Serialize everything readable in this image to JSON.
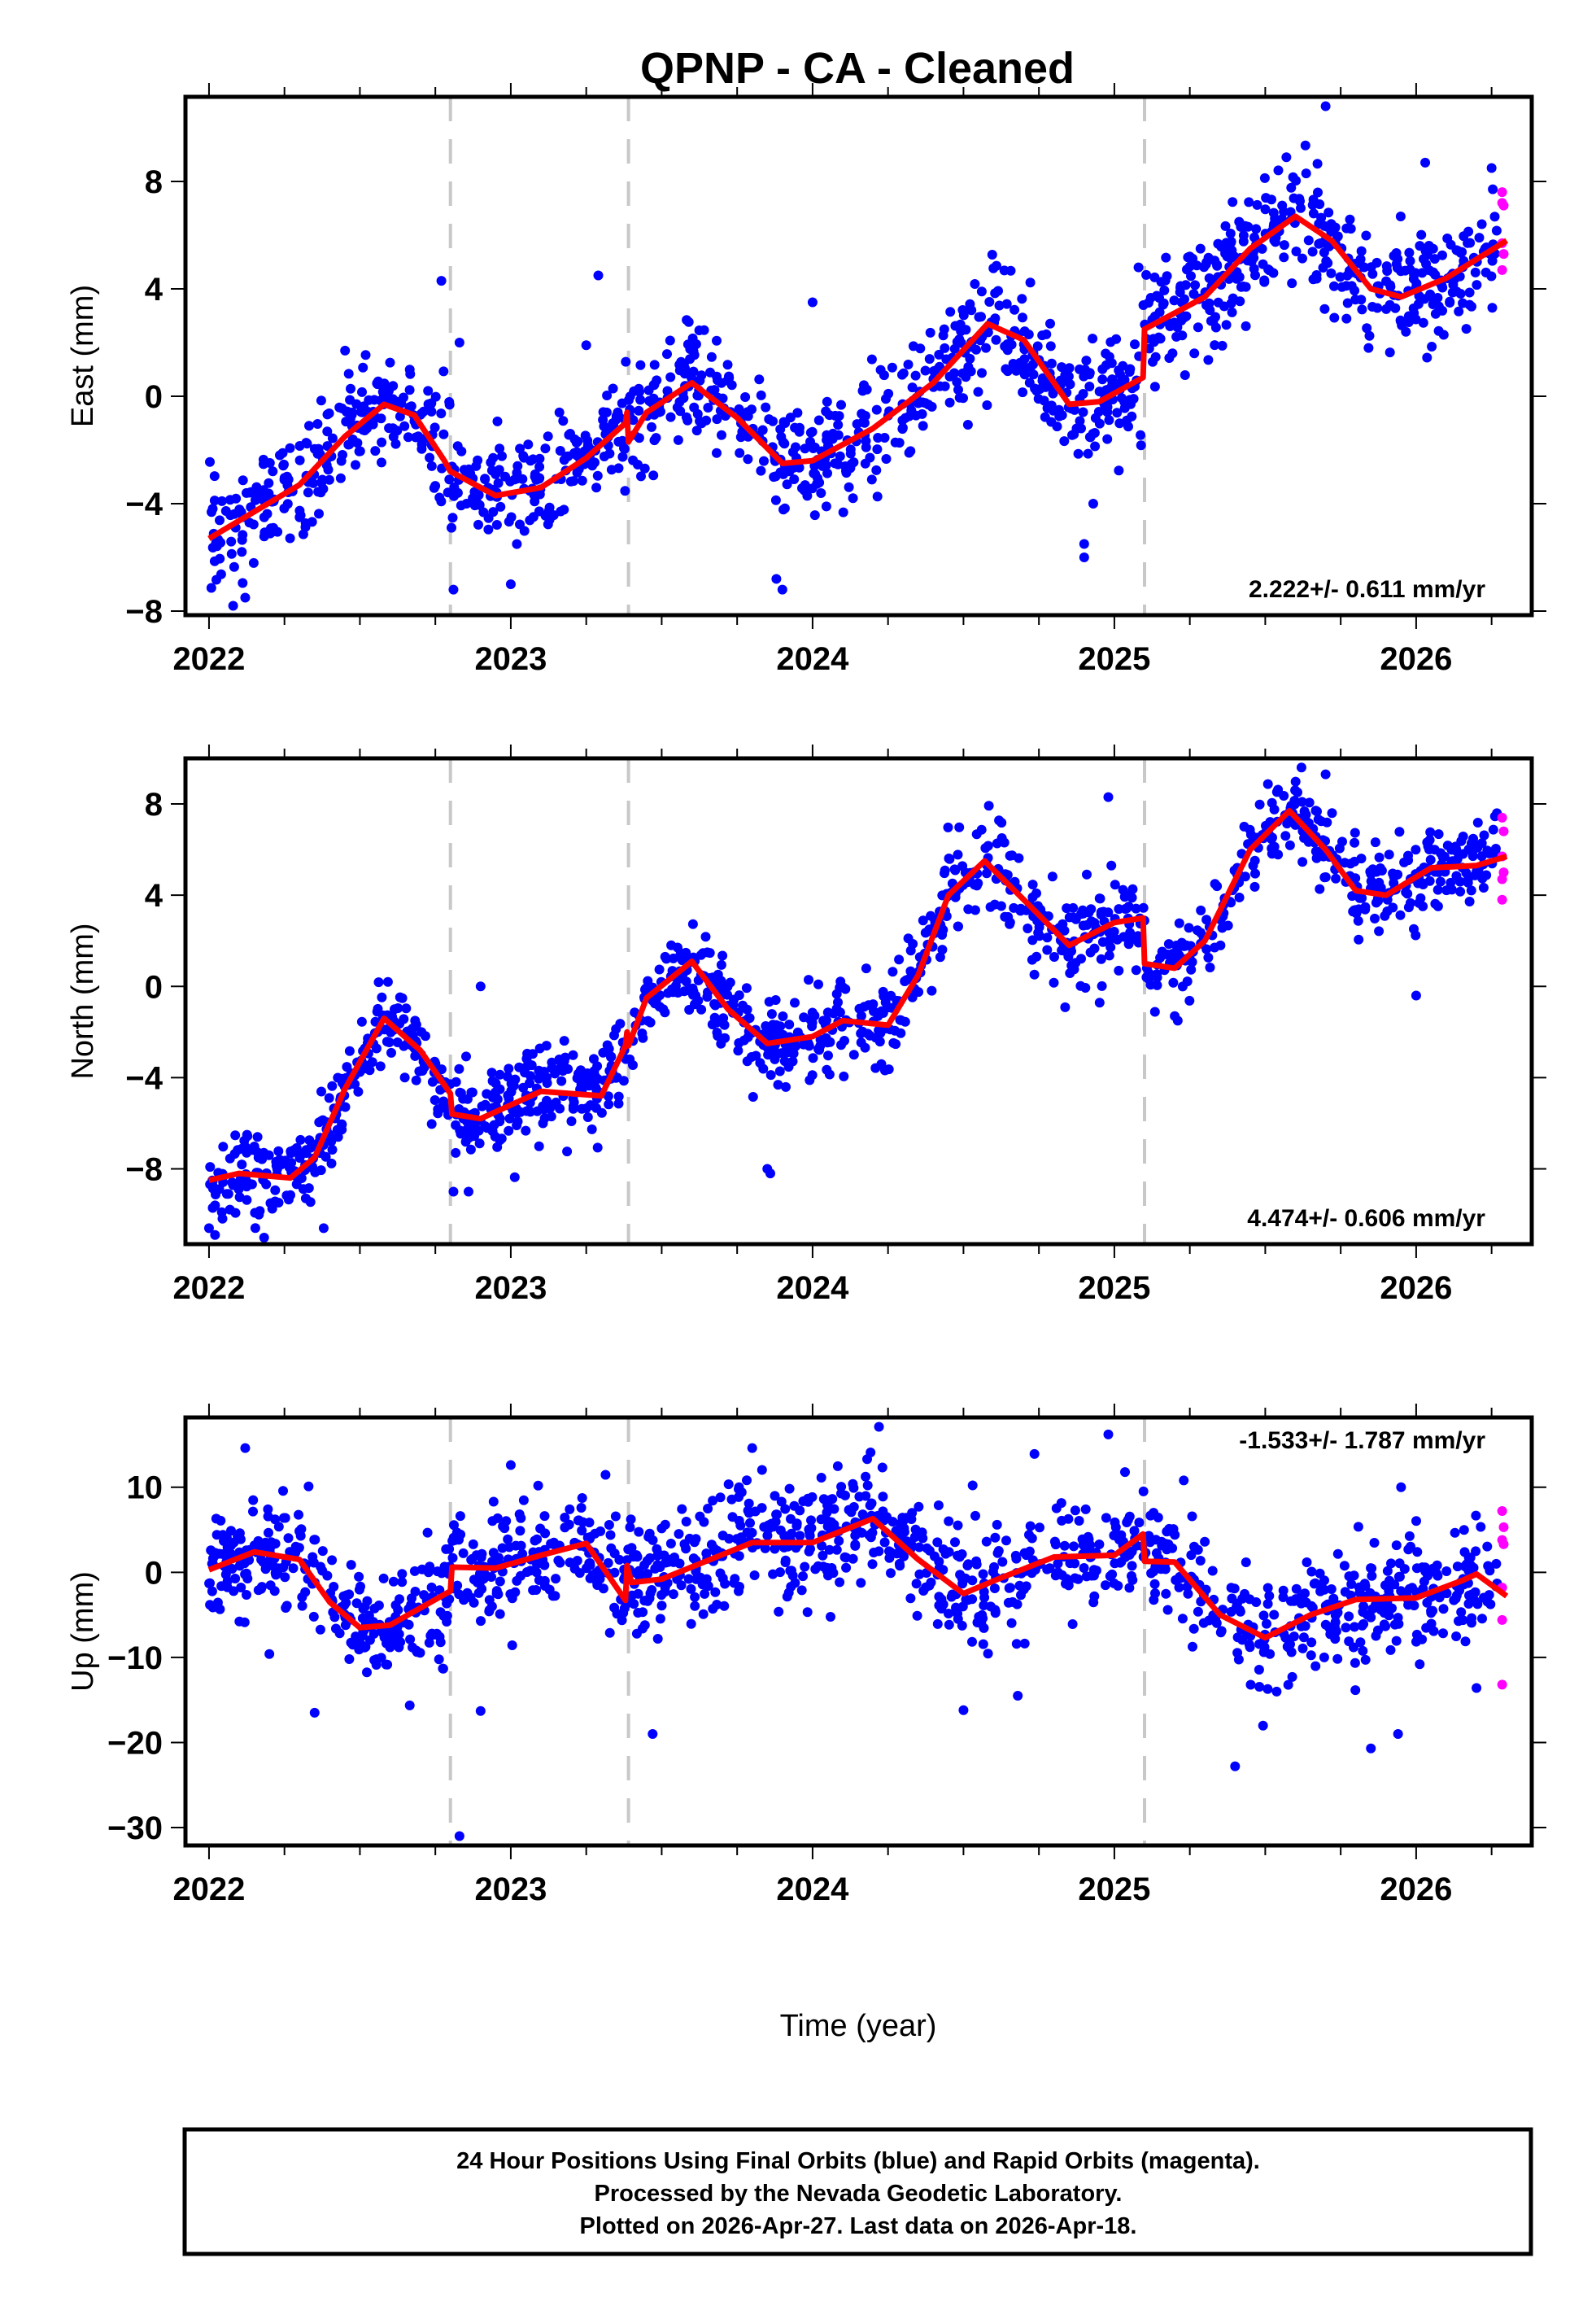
{
  "chart_data": {
    "type": "scatter",
    "title": "QPNP  - CA - Cleaned",
    "xlabel": "Time (year)",
    "x_ticks": [
      2022,
      2023,
      2024,
      2025,
      2026
    ],
    "x_tick_labels": [
      "2022",
      "2023",
      "2024",
      "2025",
      "2026"
    ],
    "x_minor_tick_step": 0.25,
    "xlim": [
      2021.922,
      2026.383
    ],
    "grid": false,
    "colors": {
      "final": "#0000ff",
      "rapid": "#ff00ff",
      "model": "#ff0000",
      "steps": "#c8c8c8",
      "frame": "#000000"
    },
    "step_epochs": [
      2022.8,
      2023.39,
      2025.1
    ],
    "footer": {
      "lines": [
        "24 Hour Positions Using Final Orbits (blue) and Rapid Orbits (magenta).",
        "Processed by the Nevada Geodetic Laboratory.",
        "Plotted on 2026-Apr-27. Last data on 2026-Apr-18."
      ]
    },
    "panels": [
      {
        "name": "east",
        "ylabel": "East (mm)",
        "ylim": [
          -8.15,
          11.15
        ],
        "y_ticks": [
          -8,
          -4,
          0,
          4,
          8
        ],
        "y_tick_labels": [
          "−8",
          "−4",
          "0",
          "4",
          "8"
        ],
        "rate_label": "2.222+/- 0.611 mm/yr",
        "rate_position": "bottom-right",
        "scatter_std_mm": 1.3,
        "model": [
          [
            2022.0,
            -5.3
          ],
          [
            2022.15,
            -4.3
          ],
          [
            2022.3,
            -3.3
          ],
          [
            2022.45,
            -1.5
          ],
          [
            2022.58,
            -0.3
          ],
          [
            2022.68,
            -0.7
          ],
          [
            2022.78,
            -2.4
          ],
          [
            2022.8,
            -2.8
          ],
          [
            2022.95,
            -3.7
          ],
          [
            2023.1,
            -3.4
          ],
          [
            2023.25,
            -2.3
          ],
          [
            2023.38,
            -1.0
          ],
          [
            2023.385,
            -0.6
          ],
          [
            2023.39,
            -1.7
          ],
          [
            2023.45,
            -0.6
          ],
          [
            2023.6,
            0.5
          ],
          [
            2023.75,
            -0.8
          ],
          [
            2023.9,
            -2.5
          ],
          [
            2024.0,
            -2.4
          ],
          [
            2024.2,
            -1.2
          ],
          [
            2024.4,
            0.5
          ],
          [
            2024.58,
            2.7
          ],
          [
            2024.7,
            2.1
          ],
          [
            2024.85,
            -0.3
          ],
          [
            2024.95,
            -0.2
          ],
          [
            2025.095,
            0.7
          ],
          [
            2025.1,
            2.5
          ],
          [
            2025.3,
            3.7
          ],
          [
            2025.45,
            5.5
          ],
          [
            2025.6,
            6.7
          ],
          [
            2025.72,
            5.8
          ],
          [
            2025.85,
            4.0
          ],
          [
            2025.95,
            3.7
          ],
          [
            2026.1,
            4.4
          ],
          [
            2026.3,
            5.8
          ]
        ],
        "outliers": [
          [
            2022.08,
            -7.8
          ],
          [
            2022.12,
            -7.5
          ],
          [
            2022.77,
            4.3
          ],
          [
            2022.81,
            -7.2
          ],
          [
            2022.83,
            2.0
          ],
          [
            2023.0,
            -7.0
          ],
          [
            2023.29,
            4.5
          ],
          [
            2023.25,
            1.9
          ],
          [
            2023.9,
            -7.2
          ],
          [
            2023.88,
            -6.8
          ],
          [
            2024.0,
            3.5
          ],
          [
            2024.9,
            -6.0
          ],
          [
            2024.9,
            -5.5
          ],
          [
            2024.93,
            -4.0
          ],
          [
            2025.08,
            4.8
          ],
          [
            2025.7,
            10.8
          ],
          [
            2025.57,
            8.9
          ],
          [
            2026.03,
            8.7
          ],
          [
            2026.25,
            8.5
          ]
        ],
        "rapid": [
          [
            2026.285,
            7.6
          ],
          [
            2026.285,
            7.2
          ],
          [
            2026.29,
            7.1
          ],
          [
            2026.285,
            5.7
          ],
          [
            2026.29,
            5.3
          ],
          [
            2026.285,
            4.7
          ]
        ]
      },
      {
        "name": "north",
        "ylabel": "North (mm)",
        "ylim": [
          -11.3,
          10.0
        ],
        "y_ticks": [
          -8,
          -4,
          0,
          4,
          8
        ],
        "y_tick_labels": [
          "−8",
          "−4",
          "0",
          "4",
          "8"
        ],
        "rate_label": "4.474+/- 0.606 mm/yr",
        "rate_position": "bottom-right",
        "scatter_std_mm": 1.2,
        "model": [
          [
            2022.0,
            -8.5
          ],
          [
            2022.1,
            -8.2
          ],
          [
            2022.27,
            -8.4
          ],
          [
            2022.35,
            -7.5
          ],
          [
            2022.45,
            -4.5
          ],
          [
            2022.58,
            -1.4
          ],
          [
            2022.7,
            -2.8
          ],
          [
            2022.8,
            -4.7
          ],
          [
            2022.805,
            -5.6
          ],
          [
            2022.9,
            -5.8
          ],
          [
            2023.1,
            -4.6
          ],
          [
            2023.3,
            -4.8
          ],
          [
            2023.38,
            -2.6
          ],
          [
            2023.385,
            -2.0
          ],
          [
            2023.39,
            -2.6
          ],
          [
            2023.45,
            -0.5
          ],
          [
            2023.6,
            1.1
          ],
          [
            2023.72,
            -1.0
          ],
          [
            2023.85,
            -2.5
          ],
          [
            2024.0,
            -2.2
          ],
          [
            2024.1,
            -1.5
          ],
          [
            2024.25,
            -1.7
          ],
          [
            2024.35,
            0.5
          ],
          [
            2024.45,
            4.0
          ],
          [
            2024.57,
            5.5
          ],
          [
            2024.7,
            3.8
          ],
          [
            2024.85,
            1.8
          ],
          [
            2025.0,
            2.8
          ],
          [
            2025.095,
            3.0
          ],
          [
            2025.1,
            1.0
          ],
          [
            2025.2,
            0.8
          ],
          [
            2025.3,
            2.0
          ],
          [
            2025.45,
            6.0
          ],
          [
            2025.58,
            7.7
          ],
          [
            2025.7,
            6.0
          ],
          [
            2025.8,
            4.2
          ],
          [
            2025.9,
            4.0
          ],
          [
            2026.05,
            5.2
          ],
          [
            2026.2,
            5.3
          ],
          [
            2026.3,
            5.7
          ]
        ],
        "outliers": [
          [
            2022.0,
            -10.6
          ],
          [
            2022.02,
            -10.9
          ],
          [
            2022.38,
            -10.6
          ],
          [
            2022.9,
            0.0
          ],
          [
            2022.81,
            -9.0
          ],
          [
            2022.86,
            -9.0
          ],
          [
            2023.85,
            -8.0
          ],
          [
            2023.86,
            -8.2
          ],
          [
            2024.98,
            8.3
          ],
          [
            2024.99,
            5.3
          ],
          [
            2025.2,
            -1.3
          ],
          [
            2025.21,
            -1.5
          ],
          [
            2025.7,
            9.3
          ],
          [
            2025.62,
            9.6
          ],
          [
            2026.0,
            -0.4
          ]
        ],
        "rapid": [
          [
            2026.285,
            7.4
          ],
          [
            2026.29,
            6.8
          ],
          [
            2026.285,
            5.7
          ],
          [
            2026.29,
            5.0
          ],
          [
            2026.285,
            4.7
          ],
          [
            2026.285,
            3.8
          ]
        ]
      },
      {
        "name": "up",
        "ylabel": "Up (mm)",
        "ylim": [
          -32.1,
          18.2
        ],
        "y_ticks": [
          -30,
          -20,
          -10,
          0,
          10
        ],
        "y_tick_labels": [
          "−30",
          "−20",
          "−10",
          "0",
          "10"
        ],
        "rate_label": "-1.533+/- 1.787 mm/yr",
        "rate_position": "top-right",
        "scatter_std_mm": 4.3,
        "model": [
          [
            2022.0,
            0.3
          ],
          [
            2022.15,
            2.4
          ],
          [
            2022.3,
            1.5
          ],
          [
            2022.4,
            -3.5
          ],
          [
            2022.5,
            -6.5
          ],
          [
            2022.6,
            -6.2
          ],
          [
            2022.8,
            -2.2
          ],
          [
            2022.805,
            0.6
          ],
          [
            2022.95,
            0.5
          ],
          [
            2023.1,
            2.0
          ],
          [
            2023.25,
            3.4
          ],
          [
            2023.38,
            -3.3
          ],
          [
            2023.385,
            0.8
          ],
          [
            2023.4,
            -1.2
          ],
          [
            2023.5,
            -0.8
          ],
          [
            2023.8,
            3.5
          ],
          [
            2024.0,
            3.5
          ],
          [
            2024.2,
            6.3
          ],
          [
            2024.35,
            1.5
          ],
          [
            2024.5,
            -2.5
          ],
          [
            2024.6,
            -1.0
          ],
          [
            2024.8,
            1.8
          ],
          [
            2025.0,
            2.0
          ],
          [
            2025.095,
            4.5
          ],
          [
            2025.1,
            1.3
          ],
          [
            2025.2,
            1.2
          ],
          [
            2025.35,
            -5.0
          ],
          [
            2025.5,
            -7.7
          ],
          [
            2025.65,
            -5.0
          ],
          [
            2025.8,
            -3.2
          ],
          [
            2026.0,
            -3.0
          ],
          [
            2026.15,
            -1.0
          ],
          [
            2026.2,
            -0.2
          ],
          [
            2026.3,
            -2.8
          ]
        ],
        "outliers": [
          [
            2022.12,
            14.6
          ],
          [
            2022.2,
            -9.6
          ],
          [
            2022.35,
            -16.5
          ],
          [
            2022.33,
            10.1
          ],
          [
            2022.83,
            -31.0
          ],
          [
            2022.9,
            -16.3
          ],
          [
            2023.0,
            12.6
          ],
          [
            2023.47,
            -19.0
          ],
          [
            2023.8,
            14.6
          ],
          [
            2024.22,
            17.1
          ],
          [
            2024.5,
            -16.2
          ],
          [
            2024.68,
            -14.5
          ],
          [
            2024.98,
            16.2
          ],
          [
            2025.23,
            10.8
          ],
          [
            2025.4,
            -22.8
          ],
          [
            2025.85,
            -20.7
          ],
          [
            2025.95,
            10.0
          ],
          [
            2026.2,
            -13.6
          ],
          [
            2025.94,
            -19.0
          ]
        ],
        "rapid": [
          [
            2026.285,
            7.2
          ],
          [
            2026.29,
            5.3
          ],
          [
            2026.285,
            3.8
          ],
          [
            2026.29,
            3.3
          ],
          [
            2026.285,
            -1.8
          ],
          [
            2026.285,
            -5.6
          ],
          [
            2026.285,
            -13.2
          ]
        ]
      }
    ]
  }
}
